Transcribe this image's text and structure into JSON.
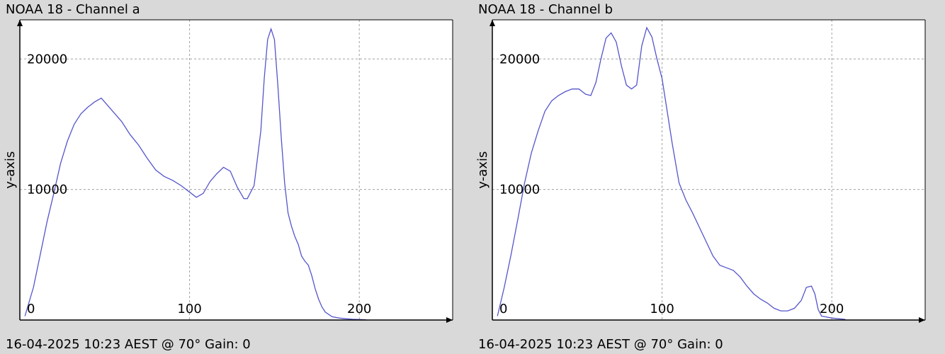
{
  "colors": {
    "plot_bg": "#ffffff",
    "page_bg": "#d9d9d9",
    "line": "#5555cc",
    "grid": "#a0a0a0",
    "axis": "#000000"
  },
  "chart_data": [
    {
      "type": "line",
      "title": "NOAA 18 - Channel a",
      "footer": "16-04-2025 10:23 AEST @ 70° Gain: 0",
      "ylabel": "y-axis",
      "xlabel": "",
      "xlim": [
        0,
        255
      ],
      "ylim": [
        0,
        23000
      ],
      "xticks": [
        0,
        100,
        200
      ],
      "yticks": [
        10000,
        20000
      ],
      "grid": true,
      "legend": "none",
      "series": [
        {
          "x": [
            3,
            8,
            12,
            16,
            20,
            24,
            28,
            32,
            36,
            40,
            44,
            48,
            52,
            56,
            60,
            65,
            70,
            75,
            80,
            85,
            90,
            95,
            100,
            104,
            108,
            112,
            116,
            120,
            124,
            128,
            132,
            134,
            138,
            142,
            144,
            146,
            148,
            150,
            152,
            154,
            156,
            158,
            160,
            162,
            164,
            166,
            168,
            170,
            172,
            174,
            176,
            178,
            180,
            184,
            188,
            192,
            196,
            200,
            204
          ],
          "y": [
            300,
            2500,
            5000,
            7500,
            9700,
            12000,
            13700,
            15000,
            15800,
            16300,
            16700,
            17000,
            16400,
            15800,
            15200,
            14200,
            13400,
            12400,
            11500,
            11000,
            10700,
            10300,
            9800,
            9400,
            9700,
            10600,
            11200,
            11700,
            11400,
            10200,
            9300,
            9300,
            10300,
            14500,
            18500,
            21500,
            22300,
            21500,
            18000,
            14000,
            10500,
            8200,
            7200,
            6400,
            5800,
            4900,
            4500,
            4200,
            3400,
            2400,
            1600,
            1000,
            600,
            250,
            150,
            100,
            60,
            40,
            20
          ]
        }
      ]
    },
    {
      "type": "line",
      "title": "NOAA 18 - Channel b",
      "footer": "16-04-2025 10:23 AEST @ 70° Gain: 0",
      "ylabel": "y-axis",
      "xlabel": "",
      "xlim": [
        0,
        255
      ],
      "ylim": [
        0,
        23000
      ],
      "xticks": [
        0,
        100,
        200
      ],
      "yticks": [
        10000,
        20000
      ],
      "grid": true,
      "legend": "none",
      "series": [
        {
          "x": [
            3,
            7,
            11,
            15,
            19,
            23,
            27,
            31,
            35,
            39,
            43,
            47,
            51,
            55,
            58,
            61,
            64,
            67,
            70,
            73,
            76,
            79,
            82,
            85,
            88,
            91,
            94,
            97,
            100,
            103,
            106,
            110,
            114,
            118,
            122,
            126,
            130,
            134,
            138,
            142,
            146,
            150,
            154,
            158,
            162,
            166,
            170,
            174,
            178,
            182,
            185,
            188,
            190,
            192,
            194,
            196,
            200,
            204,
            208
          ],
          "y": [
            300,
            2500,
            5000,
            7700,
            10500,
            12800,
            14500,
            16000,
            16800,
            17200,
            17500,
            17700,
            17700,
            17300,
            17200,
            18200,
            20000,
            21600,
            22000,
            21300,
            19500,
            18000,
            17700,
            18000,
            21000,
            22400,
            21700,
            20000,
            18500,
            16000,
            13500,
            10500,
            9200,
            8200,
            7100,
            6000,
            4900,
            4200,
            4000,
            3800,
            3300,
            2600,
            2000,
            1600,
            1300,
            900,
            700,
            700,
            900,
            1500,
            2500,
            2600,
            2000,
            800,
            300,
            250,
            150,
            100,
            50
          ]
        }
      ]
    }
  ]
}
